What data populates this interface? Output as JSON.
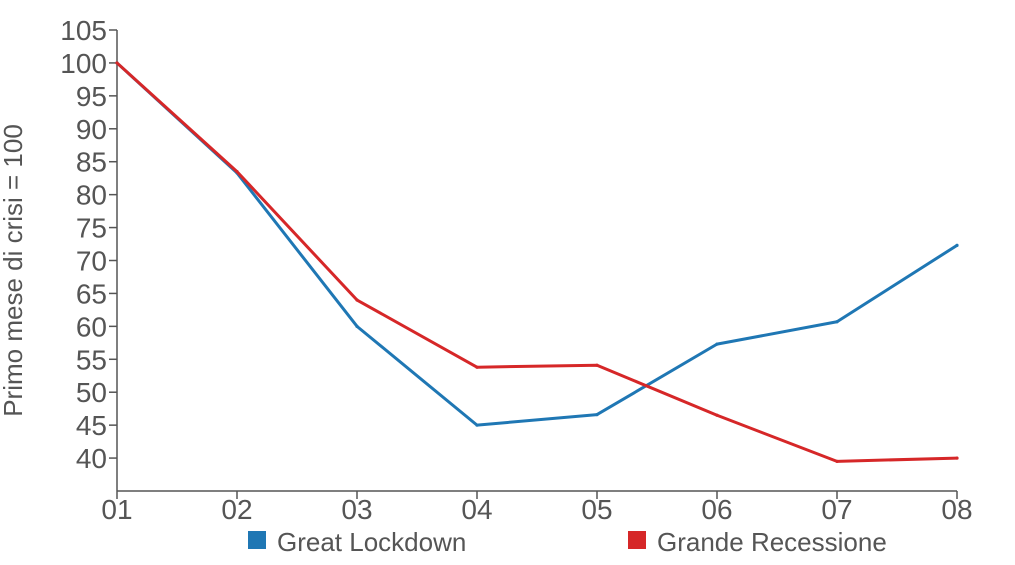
{
  "chart_data": {
    "type": "line",
    "categories": [
      "01",
      "02",
      "03",
      "04",
      "05",
      "06",
      "07",
      "08"
    ],
    "ylabel": "Primo mese di crisi = 100",
    "xlabel": "",
    "ylim": [
      35,
      105
    ],
    "yticks": [
      40,
      45,
      50,
      55,
      60,
      65,
      70,
      75,
      80,
      85,
      90,
      95,
      100,
      105
    ],
    "grid": false,
    "legend_position": "bottom",
    "series": [
      {
        "name": "Great Lockdown",
        "color": "#1f77b4",
        "values": [
          100,
          83.3,
          60,
          45,
          46.6,
          57.3,
          60.7,
          72.3
        ]
      },
      {
        "name": "Grande Recessione",
        "color": "#d62728",
        "values": [
          100,
          83.5,
          64,
          53.8,
          54.1,
          46.5,
          39.5,
          40
        ]
      }
    ]
  }
}
